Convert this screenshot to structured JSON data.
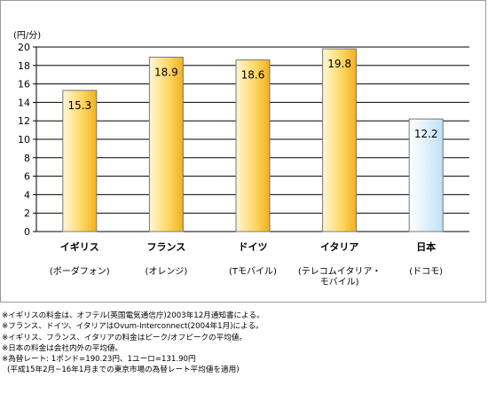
{
  "chart_data": {
    "type": "bar",
    "unit": "(円/分)",
    "categories": [
      "イギリス",
      "フランス",
      "ドイツ",
      "イタリア",
      "日本"
    ],
    "carriers": [
      [
        "(ボーダフォン)"
      ],
      [
        "(オレンジ)"
      ],
      [
        "(Tモバイル)"
      ],
      [
        "(テレコムイタリア・",
        "モバイル)"
      ],
      [
        "(ドコモ)"
      ]
    ],
    "values": [
      15.3,
      18.9,
      18.6,
      19.8,
      12.2
    ],
    "value_labels": [
      "15.3",
      "18.9",
      "18.6",
      "19.8",
      "12.2"
    ],
    "yticks": [
      "0",
      "2",
      "4",
      "6",
      "8",
      "10",
      "12",
      "14",
      "16",
      "18",
      "20"
    ],
    "ylim": [
      0,
      20
    ],
    "grid": true,
    "colors": {
      "europe_bar_light": "#fff6d6",
      "europe_bar_dark": "#f0b020",
      "japan_bar_light": "#ffffff",
      "japan_bar_dark": "#bfe0f5",
      "bar_outline": "#777777"
    }
  },
  "notes": [
    "※イギリスの料金は、オフテル(英国電気通信庁)2003年12月通知書による。",
    "※フランス、ドイツ、イタリアはOvum-Interconnect(2004年1月)による。",
    "※イギリス、フランス、イタリアの料金はピーク/オフピークの平均値。",
    "※日本の料金は会社内外の平均値。",
    "※為替レート: 1ポンド=190.23円、1ユーロ=131.90円",
    "(平成15年2月~16年1月までの東京市場の為替レート平均値を適用)"
  ]
}
